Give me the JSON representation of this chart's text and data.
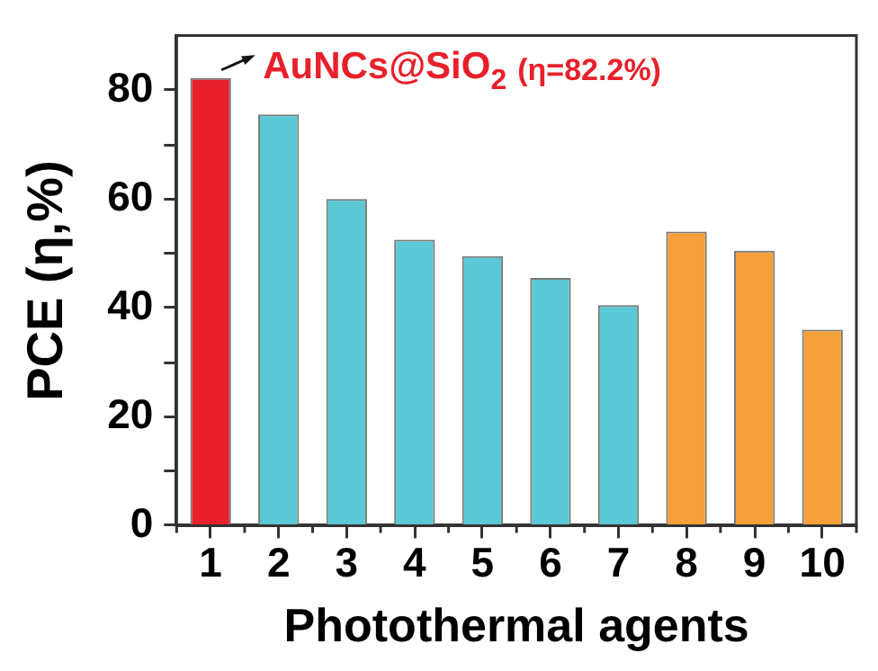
{
  "chart_data": {
    "type": "bar",
    "xlabel": "Photothermal agents",
    "ylabel": "PCE (η,%)",
    "categories": [
      "1",
      "2",
      "3",
      "4",
      "5",
      "6",
      "7",
      "8",
      "9",
      "10"
    ],
    "values": [
      82.2,
      75.5,
      60,
      52.5,
      49.5,
      45.5,
      40.5,
      54,
      50.5,
      36
    ],
    "colors": [
      "#e8202a",
      "#5bc8d6",
      "#5bc8d6",
      "#5bc8d6",
      "#5bc8d6",
      "#5bc8d6",
      "#5bc8d6",
      "#f5a03a",
      "#f5a03a",
      "#f5a03a"
    ],
    "ylim": [
      0,
      90
    ],
    "yticks": [
      0,
      {
        "value": 10,
        "label": null
      },
      20,
      {
        "value": 30,
        "label": null
      },
      40,
      {
        "value": 50,
        "label": null
      },
      60,
      {
        "value": 70,
        "label": null
      },
      80
    ],
    "grid": false,
    "legend": false,
    "annotations": [
      {
        "text": "AuNCs@SiO$_{2}$",
        "x": "1",
        "y": 82.2
      },
      "(η=82.2%)"
    ]
  }
}
